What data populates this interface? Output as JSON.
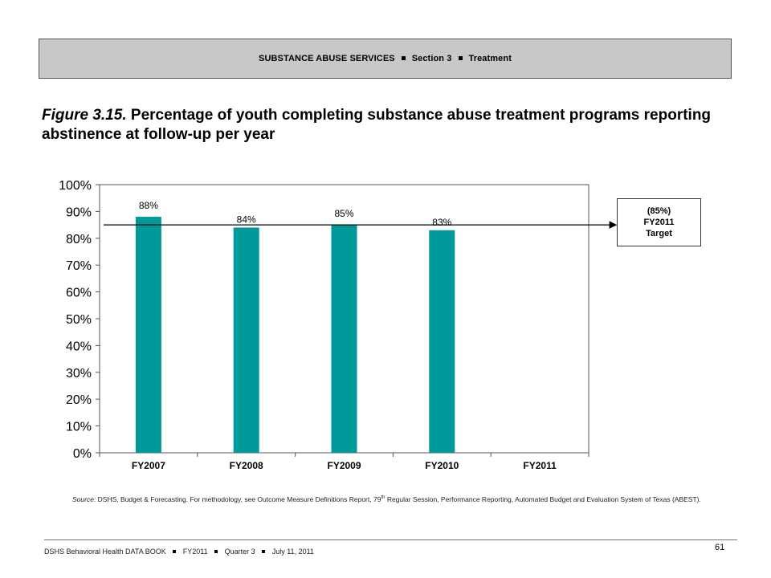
{
  "header": {
    "section": "SUBSTANCE ABUSE SERVICES",
    "part": "Section 3",
    "topic": "Treatment"
  },
  "title": {
    "figure": "Figure 3.15.",
    "text": "Percentage of youth completing substance abuse treatment programs reporting abstinence at follow-up per year"
  },
  "target_box": {
    "line1": "(85%)",
    "line2": "FY2011",
    "line3": "Target"
  },
  "chart_data": {
    "type": "bar",
    "categories": [
      "FY2007",
      "FY2008",
      "FY2009",
      "FY2010",
      "FY2011"
    ],
    "values": [
      88,
      84,
      85,
      83,
      null
    ],
    "data_labels": [
      "88%",
      "84%",
      "85%",
      "83%",
      ""
    ],
    "title": "",
    "xlabel": "",
    "ylabel": "",
    "ylim": [
      0,
      100
    ],
    "yticks": [
      "0%",
      "10%",
      "20%",
      "30%",
      "40%",
      "50%",
      "60%",
      "70%",
      "80%",
      "90%",
      "100%"
    ],
    "target_line": 85,
    "grid": false,
    "bar_color": "#009999"
  },
  "source": {
    "label": "Source",
    "text": ": DSHS, Budget & Forecasting. For methodology, see Outcome Measure Definitions Report, 79",
    "sup": "th",
    "text2": " Regular Session, Performance Reporting, Automated Budget and Evaluation System of Texas (ABEST)."
  },
  "footer": {
    "book": "DSHS Behavioral Health DATA BOOK",
    "year": "FY2011",
    "quarter": "Quarter 3",
    "date": "July 11, 2011",
    "page": "61"
  }
}
